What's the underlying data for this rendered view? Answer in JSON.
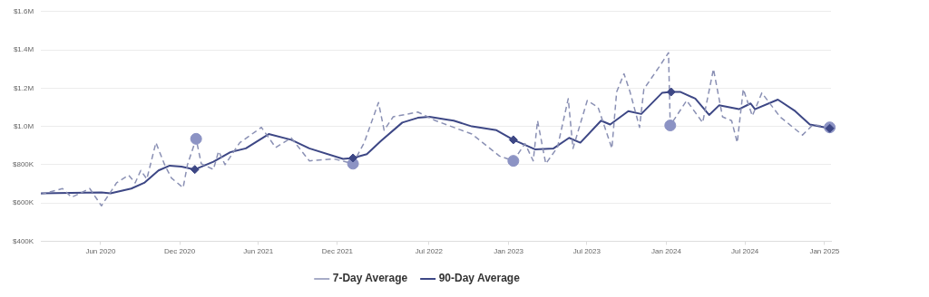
{
  "chart_data": {
    "type": "line",
    "legend": "bottom",
    "grid": "y",
    "xlim": [
      "2020-01-15",
      "2025-01-16"
    ],
    "xticks": [
      {
        "value": "2020-06-01",
        "label": "Jun 2020"
      },
      {
        "value": "2020-12-01",
        "label": "Dec 2020"
      },
      {
        "value": "2021-06-01",
        "label": "Jun 2021"
      },
      {
        "value": "2021-12-01",
        "label": "Dec 2021"
      },
      {
        "value": "2022-07-01",
        "label": "Jul 2022"
      },
      {
        "value": "2023-01-01",
        "label": "Jan 2023"
      },
      {
        "value": "2023-07-01",
        "label": "Jul 2023"
      },
      {
        "value": "2024-01-01",
        "label": "Jan 2024"
      },
      {
        "value": "2024-07-01",
        "label": "Jul 2024"
      },
      {
        "value": "2025-01-01",
        "label": "Jan 2025"
      }
    ],
    "ylim": [
      400000,
      1600000
    ],
    "yticks": [
      {
        "value": 400000,
        "label": "$400K"
      },
      {
        "value": 600000,
        "label": "$600K"
      },
      {
        "value": 800000,
        "label": "$800K"
      },
      {
        "value": 1000000,
        "label": "$1.0M"
      },
      {
        "value": 1200000,
        "label": "$1.2M"
      },
      {
        "value": 1400000,
        "label": "$1.4M"
      },
      {
        "value": 1600000,
        "label": "$1.6M"
      }
    ],
    "series": [
      {
        "name": "7-Day Average",
        "line_style": "dashed",
        "marker": "none",
        "color": "#8a90b4",
        "x": [
          "2020-01-15",
          "2020-03-05",
          "2020-03-26",
          "2020-05-07",
          "2020-06-03",
          "2020-07-08",
          "2020-08-05",
          "2020-08-20",
          "2020-09-02",
          "2020-09-16",
          "2020-10-07",
          "2020-10-28",
          "2020-11-12",
          "2020-12-09",
          "2020-12-19",
          "2021-01-08",
          "2021-01-20",
          "2021-02-17",
          "2021-03-01",
          "2021-03-16",
          "2021-04-19",
          "2021-06-08",
          "2021-07-11",
          "2021-08-16",
          "2021-09-27",
          "2021-11-23",
          "2022-01-06",
          "2022-02-01",
          "2022-03-06",
          "2022-03-19",
          "2022-04-09",
          "2022-06-05",
          "2022-07-16",
          "2022-08-27",
          "2022-10-08",
          "2022-12-11",
          "2023-01-12",
          "2023-02-08",
          "2023-02-27",
          "2023-03-09",
          "2023-03-28",
          "2023-04-24",
          "2023-05-19",
          "2023-05-30",
          "2023-07-02",
          "2023-07-27",
          "2023-08-28",
          "2023-09-08",
          "2023-09-25",
          "2023-10-09",
          "2023-10-31",
          "2023-11-10",
          "2023-12-15",
          "2024-01-06",
          "2024-01-10",
          "2024-02-17",
          "2024-03-25",
          "2024-04-19",
          "2024-05-10",
          "2024-05-31",
          "2024-06-13",
          "2024-06-27",
          "2024-07-18",
          "2024-08-09",
          "2024-09-20",
          "2024-11-11",
          "2024-12-06",
          "2025-01-13"
        ],
        "values": [
          645000,
          675000,
          630000,
          675000,
          585000,
          705000,
          745000,
          705000,
          770000,
          725000,
          915000,
          795000,
          730000,
          680000,
          800000,
          935000,
          805000,
          775000,
          870000,
          800000,
          915000,
          995000,
          890000,
          940000,
          820000,
          830000,
          805000,
          915000,
          1125000,
          980000,
          1050000,
          1075000,
          1030000,
          995000,
          960000,
          845000,
          820000,
          910000,
          820000,
          1030000,
          805000,
          890000,
          1145000,
          885000,
          1135000,
          1100000,
          885000,
          1180000,
          1275000,
          1180000,
          995000,
          1195000,
          1310000,
          1385000,
          1005000,
          1135000,
          1020000,
          1300000,
          1050000,
          1030000,
          915000,
          1195000,
          1055000,
          1175000,
          1050000,
          955000,
          1010000,
          995000
        ]
      },
      {
        "name": "90-Day Average",
        "line_style": "solid",
        "marker": "none",
        "color": "#3d4785",
        "x": [
          "2020-01-15",
          "2020-06-03",
          "2020-06-24",
          "2020-08-11",
          "2020-09-10",
          "2020-10-13",
          "2020-11-08",
          "2020-12-05",
          "2021-01-05",
          "2021-02-17",
          "2021-03-28",
          "2021-05-03",
          "2021-06-25",
          "2021-08-16",
          "2021-09-27",
          "2021-12-14",
          "2022-01-06",
          "2022-02-07",
          "2022-03-12",
          "2022-04-30",
          "2022-06-05",
          "2022-07-02",
          "2022-08-13",
          "2022-08-27",
          "2022-10-08",
          "2022-12-04",
          "2023-01-12",
          "2023-03-03",
          "2023-04-15",
          "2023-05-21",
          "2023-06-16",
          "2023-08-03",
          "2023-08-24",
          "2023-10-05",
          "2023-11-04",
          "2023-12-22",
          "2024-01-12",
          "2024-02-03",
          "2024-03-08",
          "2024-04-09",
          "2024-05-02",
          "2024-06-17",
          "2024-07-14",
          "2024-07-24",
          "2024-09-15",
          "2024-10-25",
          "2024-11-28",
          "2025-01-13"
        ],
        "values": [
          650000,
          655000,
          650000,
          675000,
          705000,
          770000,
          795000,
          790000,
          775000,
          815000,
          865000,
          885000,
          960000,
          930000,
          885000,
          830000,
          835000,
          855000,
          925000,
          1020000,
          1045000,
          1050000,
          1035000,
          1030000,
          1000000,
          980000,
          930000,
          880000,
          885000,
          940000,
          915000,
          1030000,
          1010000,
          1080000,
          1065000,
          1175000,
          1180000,
          1180000,
          1145000,
          1060000,
          1110000,
          1090000,
          1120000,
          1090000,
          1140000,
          1080000,
          1010000,
          990000
        ]
      },
      {
        "type": "scatter",
        "marker": "circle",
        "color": "#8c93c4",
        "x": [
          "2021-01-08",
          "2022-01-06",
          "2023-01-12",
          "2024-01-10",
          "2025-01-13"
        ],
        "values": [
          935000,
          805000,
          820000,
          1005000,
          995000
        ]
      },
      {
        "type": "scatter",
        "marker": "diamond",
        "color": "#3d4785",
        "x": [
          "2021-01-05",
          "2022-01-06",
          "2023-01-12",
          "2024-01-12",
          "2025-01-13"
        ],
        "values": [
          775000,
          835000,
          930000,
          1180000,
          990000
        ]
      }
    ]
  }
}
